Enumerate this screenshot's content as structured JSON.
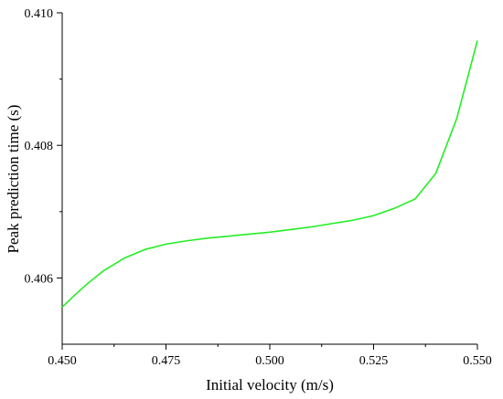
{
  "chart_data": {
    "type": "line",
    "xlabel": "Initial velocity (m/s)",
    "ylabel": "Peak prediction time (s)",
    "xlim": [
      0.45,
      0.55
    ],
    "ylim": [
      0.405,
      0.41
    ],
    "x_ticks": [
      0.45,
      0.475,
      0.5,
      0.525,
      0.55
    ],
    "x_tick_labels": [
      "0.450",
      "0.475",
      "0.500",
      "0.525",
      "0.550"
    ],
    "y_ticks": [
      0.406,
      0.408,
      0.41
    ],
    "y_tick_labels": [
      "0.406",
      "0.408",
      "0.410"
    ],
    "grid": false,
    "line_color": "#22ee22",
    "series": [
      {
        "x": [
          0.45,
          0.453,
          0.456,
          0.46,
          0.465,
          0.47,
          0.475,
          0.48,
          0.485,
          0.49,
          0.495,
          0.5,
          0.505,
          0.51,
          0.515,
          0.52,
          0.525,
          0.53,
          0.535,
          0.54,
          0.545,
          0.55
        ],
        "y": [
          0.40556,
          0.40574,
          0.40591,
          0.40611,
          0.4063,
          0.40643,
          0.40651,
          0.40656,
          0.4066,
          0.40663,
          0.40666,
          0.40669,
          0.40673,
          0.40677,
          0.40682,
          0.40687,
          0.40694,
          0.40705,
          0.40719,
          0.40758,
          0.4084,
          0.40958
        ]
      }
    ]
  }
}
